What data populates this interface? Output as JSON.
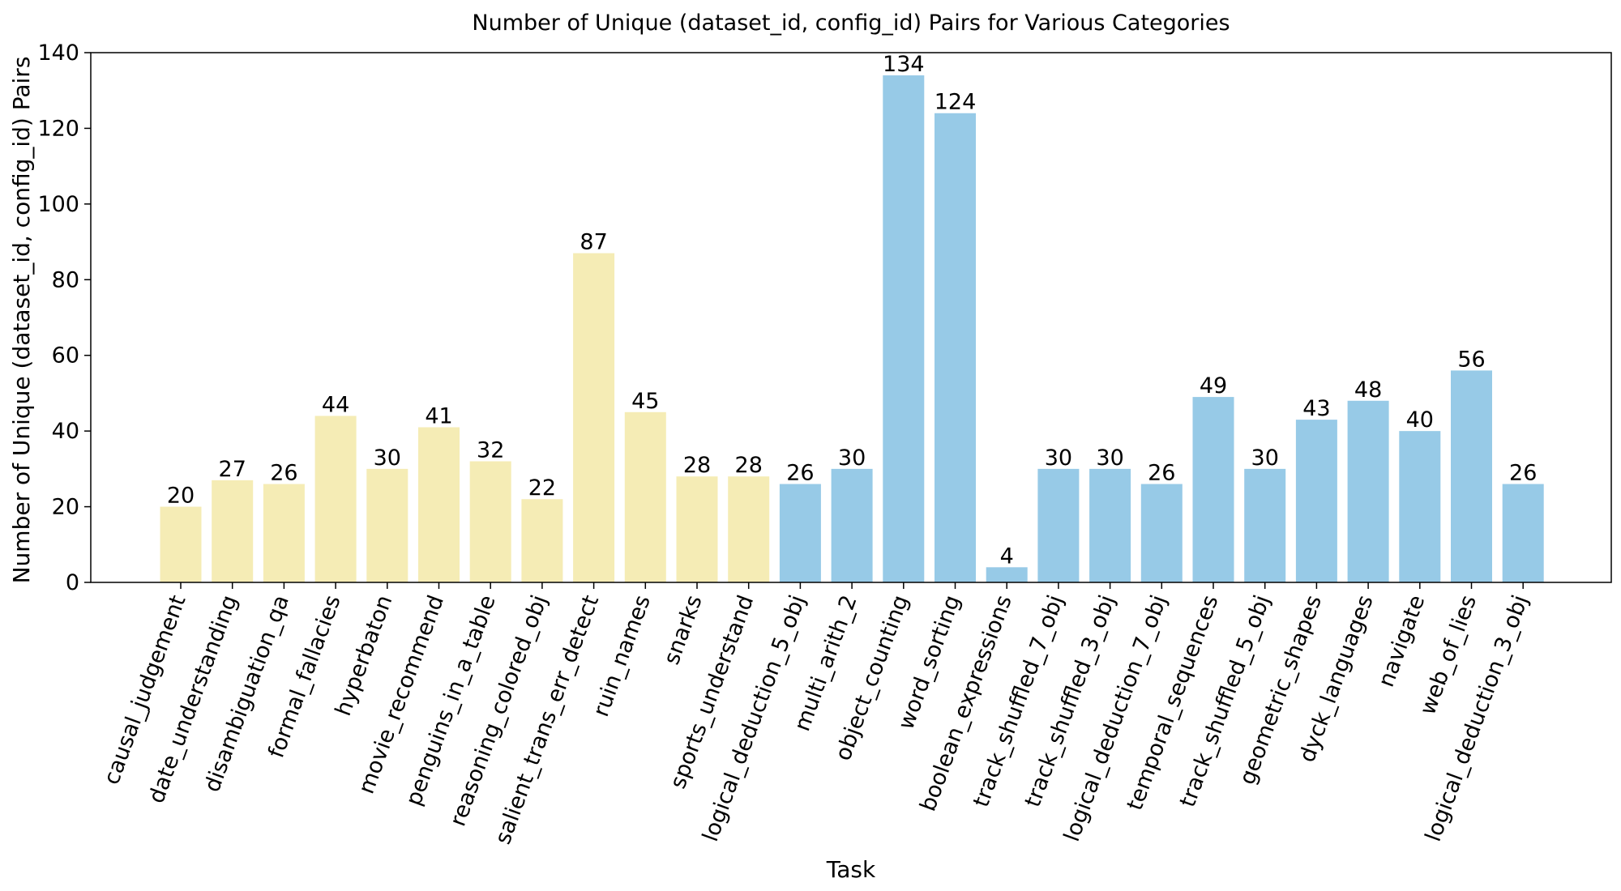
{
  "chart_data": {
    "type": "bar",
    "title": "Number of Unique (dataset_id, config_id) Pairs for Various Categories",
    "xlabel": "Task",
    "ylabel": "Number of Unique (dataset_id, config_id) Pairs",
    "ylim": [
      0,
      140
    ],
    "yticks": [
      0,
      20,
      40,
      60,
      80,
      100,
      120,
      140
    ],
    "grid": false,
    "categories": [
      "causal_judgement",
      "date_understanding",
      "disambiguation_qa",
      "formal_fallacies",
      "hyperbaton",
      "movie_recommend",
      "penguins_in_a_table",
      "reasoning_colored_obj",
      "salient_trans_err_detect",
      "ruin_names",
      "snarks",
      "sports_understand",
      "logical_deduction_5_obj",
      "multi_arith_2",
      "object_counting",
      "word_sorting",
      "boolean_expressions",
      "track_shuffled_7_obj",
      "track_shuffled_3_obj",
      "logical_deduction_7_obj",
      "temporal_sequences",
      "track_shuffled_5_obj",
      "geometric_shapes",
      "dyck_languages",
      "navigate",
      "web_of_lies",
      "logical_deduction_3_obj"
    ],
    "values": [
      20,
      27,
      26,
      44,
      30,
      41,
      32,
      22,
      87,
      45,
      28,
      28,
      26,
      30,
      134,
      124,
      4,
      30,
      30,
      26,
      49,
      30,
      43,
      48,
      40,
      56,
      26
    ],
    "bar_colors": [
      "#f5ecb5",
      "#f5ecb5",
      "#f5ecb5",
      "#f5ecb5",
      "#f5ecb5",
      "#f5ecb5",
      "#f5ecb5",
      "#f5ecb5",
      "#f5ecb5",
      "#f5ecb5",
      "#f5ecb5",
      "#f5ecb5",
      "#97cae7",
      "#97cae7",
      "#97cae7",
      "#97cae7",
      "#97cae7",
      "#97cae7",
      "#97cae7",
      "#97cae7",
      "#97cae7",
      "#97cae7",
      "#97cae7",
      "#97cae7",
      "#97cae7",
      "#97cae7",
      "#97cae7"
    ]
  }
}
